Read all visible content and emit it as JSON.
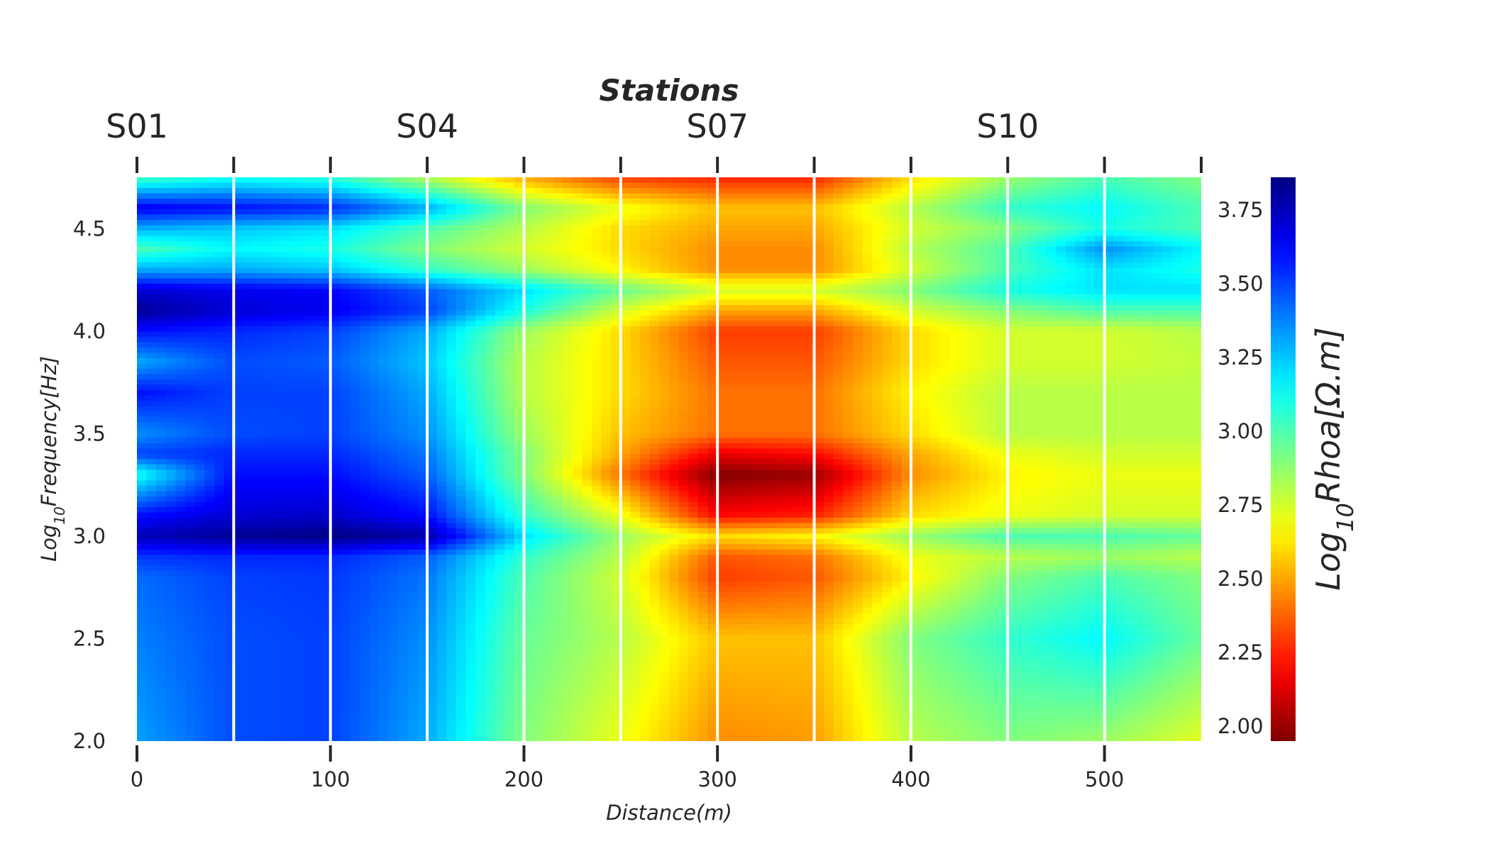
{
  "chart_data": {
    "type": "heatmap",
    "title": "Stations",
    "xlabel": "Distance(m)",
    "ylabel": "Log10Frequency[Hz]",
    "colorbar_label": "Log10Rhoa[Ω.m]",
    "colormap": "jet_reversed",
    "xlim": [
      0,
      550
    ],
    "ylim": [
      2.0,
      4.75
    ],
    "clim": [
      1.95,
      3.86
    ],
    "x_ticks": [
      0,
      100,
      200,
      300,
      400,
      500
    ],
    "x_tick_labels": [
      "0",
      "100",
      "200",
      "300",
      "400",
      "500"
    ],
    "y_ticks": [
      2.0,
      2.5,
      3.0,
      3.5,
      4.0,
      4.5
    ],
    "y_tick_labels": [
      "2.0",
      "2.5",
      "3.0",
      "3.5",
      "4.0",
      "4.5"
    ],
    "colorbar_ticks": [
      2.0,
      2.25,
      2.5,
      2.75,
      3.0,
      3.25,
      3.5,
      3.75
    ],
    "colorbar_tick_labels": [
      "2.00",
      "2.25",
      "2.50",
      "2.75",
      "3.00",
      "3.25",
      "3.50",
      "3.75"
    ],
    "station_positions": [
      0,
      50,
      100,
      150,
      200,
      250,
      300,
      350,
      400,
      450,
      500,
      550
    ],
    "station_labels": [
      {
        "name": "S01",
        "x": 0
      },
      {
        "name": "S04",
        "x": 150
      },
      {
        "name": "S07",
        "x": 300
      },
      {
        "name": "S10",
        "x": 450
      }
    ],
    "grid": false,
    "profiles_x": [
      0,
      50,
      100,
      150,
      200,
      250,
      300,
      350,
      400,
      450,
      500,
      550
    ],
    "profiles_y": [
      2.0,
      2.5,
      2.8,
      2.9,
      3.0,
      3.1,
      3.3,
      3.4,
      3.5,
      3.7,
      3.85,
      4.0,
      4.1,
      4.2,
      4.3,
      4.4,
      4.5,
      4.6,
      4.75
    ],
    "values": [
      [
        3.32,
        3.48,
        3.5,
        3.3,
        2.9,
        2.7,
        2.45,
        2.48,
        2.8,
        2.9,
        2.85,
        2.72
      ],
      [
        3.38,
        3.48,
        3.5,
        3.35,
        2.95,
        2.8,
        2.55,
        2.55,
        2.9,
        3.05,
        3.15,
        2.95
      ],
      [
        3.42,
        3.5,
        3.52,
        3.4,
        3.0,
        2.75,
        2.3,
        2.35,
        2.65,
        2.9,
        3.0,
        2.9
      ],
      [
        3.52,
        3.55,
        3.55,
        3.45,
        3.05,
        2.8,
        2.35,
        2.4,
        2.7,
        2.8,
        2.85,
        2.8
      ],
      [
        3.75,
        3.82,
        3.85,
        3.78,
        3.2,
        2.85,
        2.6,
        2.65,
        2.85,
        3.0,
        3.0,
        2.95
      ],
      [
        3.6,
        3.7,
        3.72,
        3.6,
        3.05,
        2.7,
        2.2,
        2.25,
        2.6,
        2.7,
        2.75,
        2.75
      ],
      [
        3.1,
        3.6,
        3.6,
        3.45,
        2.9,
        2.4,
        1.95,
        2.0,
        2.45,
        2.65,
        2.7,
        2.7
      ],
      [
        3.5,
        3.55,
        3.55,
        3.4,
        2.9,
        2.5,
        2.15,
        2.2,
        2.5,
        2.7,
        2.75,
        2.75
      ],
      [
        3.35,
        3.48,
        3.5,
        3.35,
        2.85,
        2.55,
        2.4,
        2.4,
        2.6,
        2.8,
        2.8,
        2.8
      ],
      [
        3.6,
        3.5,
        3.5,
        3.3,
        2.8,
        2.6,
        2.4,
        2.4,
        2.65,
        2.8,
        2.8,
        2.8
      ],
      [
        3.3,
        3.48,
        3.45,
        3.25,
        2.8,
        2.6,
        2.35,
        2.35,
        2.6,
        2.75,
        2.75,
        2.78
      ],
      [
        3.6,
        3.55,
        3.5,
        3.3,
        2.85,
        2.6,
        2.3,
        2.3,
        2.6,
        2.75,
        2.75,
        2.8
      ],
      [
        3.82,
        3.7,
        3.65,
        3.5,
        3.1,
        2.75,
        2.5,
        2.5,
        2.75,
        2.9,
        3.0,
        3.0
      ],
      [
        3.7,
        3.65,
        3.62,
        3.45,
        3.2,
        2.95,
        2.75,
        2.75,
        2.9,
        3.1,
        3.2,
        3.2
      ],
      [
        3.3,
        3.3,
        3.25,
        3.05,
        2.85,
        2.65,
        2.45,
        2.45,
        2.75,
        3.0,
        3.2,
        3.1
      ],
      [
        3.0,
        3.15,
        3.1,
        2.9,
        2.75,
        2.6,
        2.45,
        2.45,
        2.8,
        3.0,
        3.35,
        3.15
      ],
      [
        3.3,
        3.25,
        3.2,
        3.0,
        2.8,
        2.6,
        2.5,
        2.5,
        2.75,
        2.9,
        3.1,
        3.0
      ],
      [
        3.65,
        3.6,
        3.55,
        3.3,
        2.9,
        2.7,
        2.55,
        2.55,
        2.8,
        3.05,
        3.15,
        3.0
      ],
      [
        3.0,
        3.1,
        3.05,
        2.8,
        2.5,
        2.3,
        2.25,
        2.25,
        2.6,
        2.85,
        3.0,
        2.9
      ]
    ]
  }
}
